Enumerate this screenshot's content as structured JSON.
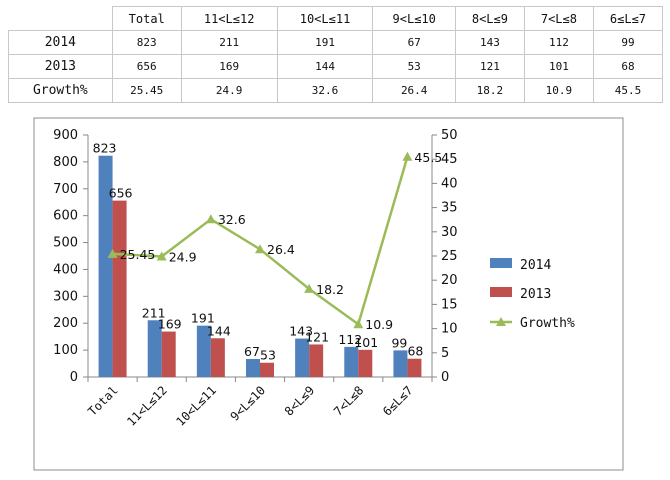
{
  "table": {
    "header": [
      "",
      "Total",
      "11<L≤12",
      "10<L≤11",
      "9<L≤10",
      "8<L≤9",
      "7<L≤8",
      "6≤L≤7"
    ],
    "rows": [
      [
        "2014",
        "823",
        "211",
        "191",
        "67",
        "143",
        "112",
        "99"
      ],
      [
        "2013",
        "656",
        "169",
        "144",
        "53",
        "121",
        "101",
        "68"
      ],
      [
        "Growth%",
        "25.45",
        "24.9",
        "32.6",
        "26.4",
        "18.2",
        "10.9",
        "45.5"
      ]
    ]
  },
  "chart_data": {
    "type": "bar",
    "categories": [
      "Total",
      "11<L≤12",
      "10<L≤11",
      "9<L≤10",
      "8<L≤9",
      "7<L≤8",
      "6≤L≤7"
    ],
    "series": [
      {
        "name": "2014",
        "type": "bar",
        "axis": "left",
        "color": "#4f81bd",
        "values": [
          823,
          211,
          191,
          67,
          143,
          112,
          99
        ]
      },
      {
        "name": "2013",
        "type": "bar",
        "axis": "left",
        "color": "#c0504d",
        "values": [
          656,
          169,
          144,
          53,
          121,
          101,
          68
        ]
      },
      {
        "name": "Growth%",
        "type": "line",
        "axis": "right",
        "color": "#9bbb59",
        "marker": "triangle",
        "values": [
          25.45,
          24.9,
          32.6,
          26.4,
          18.2,
          10.9,
          45.5
        ]
      }
    ],
    "ylim": [
      0,
      900
    ],
    "yticks": [
      0,
      100,
      200,
      300,
      400,
      500,
      600,
      700,
      800,
      900
    ],
    "y2lim": [
      0,
      50
    ],
    "y2ticks": [
      0,
      5,
      10,
      15,
      20,
      25,
      30,
      35,
      40,
      45,
      50
    ],
    "legend": "right",
    "grid": false,
    "title": "",
    "xlabel": "",
    "ylabel": ""
  }
}
